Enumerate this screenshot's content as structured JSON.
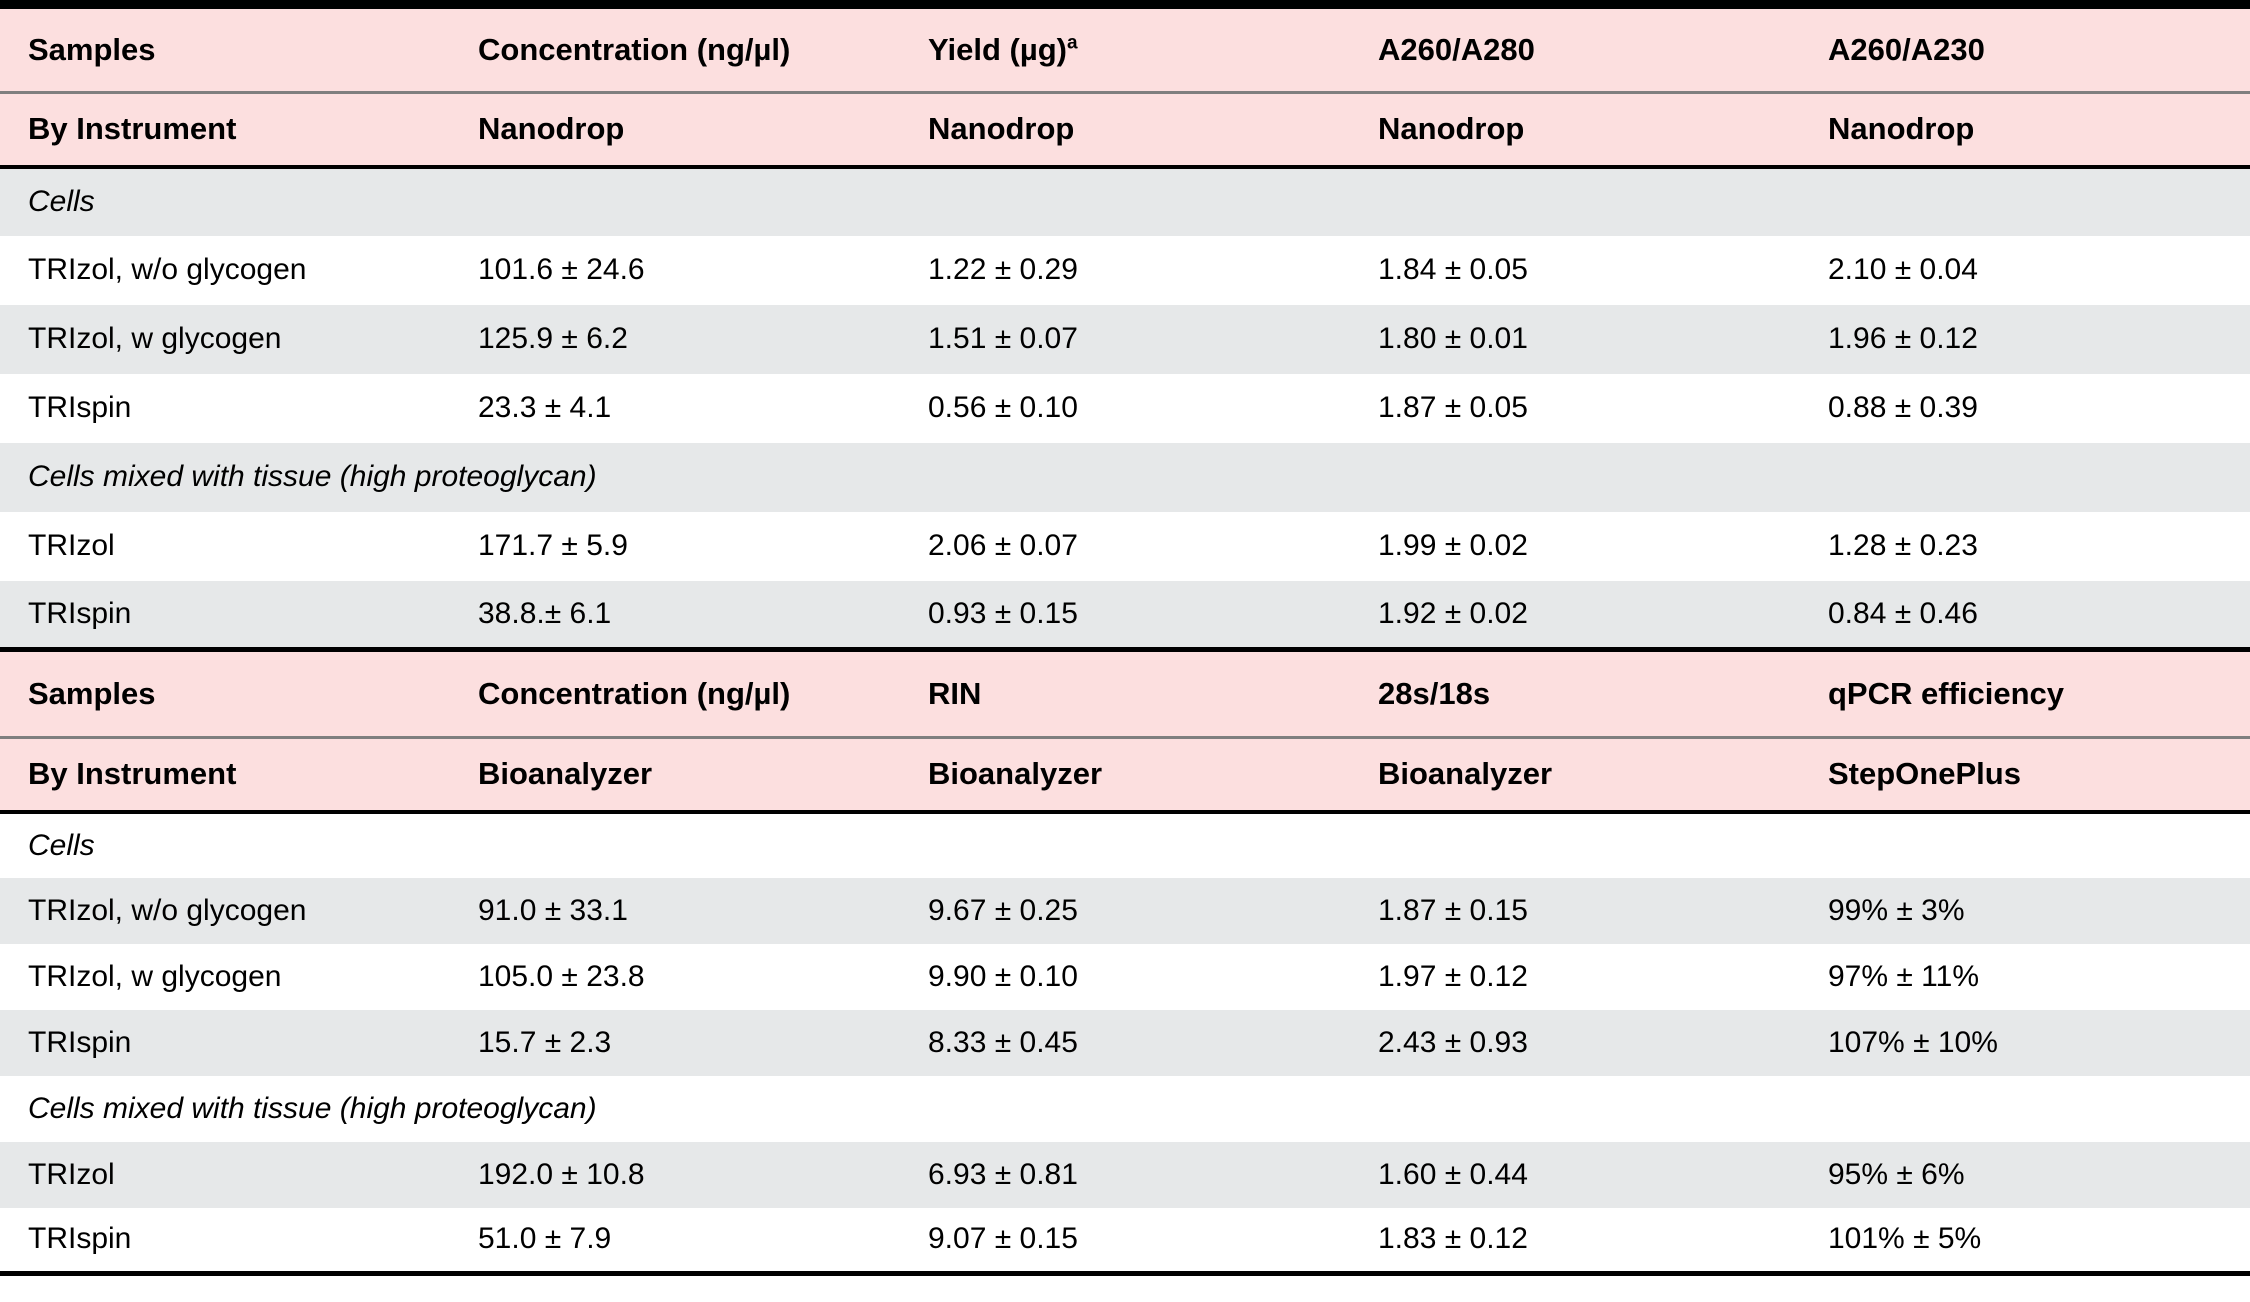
{
  "colors": {
    "header_pink": "#fcdfdf",
    "stripe_gray": "#e6e8e9",
    "rule_black": "#000000",
    "rule_gray": "#7f7f7f"
  },
  "sections": [
    {
      "header_row1": [
        "Samples",
        "Concentration (ng/µl)",
        "Yield (µg)",
        "A260/A280",
        "A260/A230"
      ],
      "header_row1_sup": "a",
      "header_row2": [
        "By Instrument",
        "Nanodrop",
        "Nanodrop",
        "Nanodrop",
        "Nanodrop"
      ],
      "rows": [
        {
          "type": "group",
          "label": "Cells"
        },
        {
          "type": "data",
          "cells": [
            "TRIzol, w/o glycogen",
            "101.6 ± 24.6",
            "1.22 ± 0.29",
            "1.84 ± 0.05",
            "2.10 ± 0.04"
          ]
        },
        {
          "type": "data",
          "cells": [
            "TRIzol, w glycogen",
            "125.9 ± 6.2",
            "1.51 ± 0.07",
            "1.80 ± 0.01",
            "1.96 ± 0.12"
          ]
        },
        {
          "type": "data",
          "cells": [
            "TRIspin",
            "23.3 ± 4.1",
            "0.56 ± 0.10",
            "1.87 ± 0.05",
            "0.88 ± 0.39"
          ]
        },
        {
          "type": "group",
          "label": "Cells mixed with tissue (high proteoglycan)"
        },
        {
          "type": "data",
          "cells": [
            "TRIzol",
            "171.7 ± 5.9",
            "2.06 ± 0.07",
            "1.99 ± 0.02",
            "1.28 ± 0.23"
          ]
        },
        {
          "type": "data",
          "cells": [
            "TRIspin",
            "38.8.± 6.1",
            "0.93 ± 0.15",
            "1.92 ± 0.02",
            "0.84 ± 0.46"
          ]
        }
      ]
    },
    {
      "header_row1": [
        "Samples",
        "Concentration (ng/µl)",
        "RIN",
        "28s/18s",
        "qPCR efficiency"
      ],
      "header_row2": [
        "By Instrument",
        "Bioanalyzer",
        "Bioanalyzer",
        "Bioanalyzer",
        "StepOnePlus"
      ],
      "rows": [
        {
          "type": "group",
          "label": "Cells"
        },
        {
          "type": "data",
          "cells": [
            "TRIzol, w/o glycogen",
            "91.0 ± 33.1",
            "9.67 ± 0.25",
            "1.87 ± 0.15",
            "99% ± 3%"
          ]
        },
        {
          "type": "data",
          "cells": [
            "TRIzol, w glycogen",
            "105.0 ± 23.8",
            "9.90 ± 0.10",
            "1.97 ± 0.12",
            "97% ± 11%"
          ]
        },
        {
          "type": "data",
          "cells": [
            "TRIspin",
            "15.7 ± 2.3",
            "8.33 ± 0.45",
            "2.43 ± 0.93",
            "107% ± 10%"
          ]
        },
        {
          "type": "group",
          "label": "Cells mixed with tissue (high proteoglycan)"
        },
        {
          "type": "data",
          "cells": [
            "TRIzol",
            "192.0 ± 10.8",
            "6.93 ± 0.81",
            "1.60 ± 0.44",
            "95% ± 6%"
          ]
        },
        {
          "type": "data",
          "cells": [
            "TRIspin",
            "51.0 ± 7.9",
            "9.07 ± 0.15",
            "1.83 ± 0.12",
            "101% ± 5%"
          ]
        }
      ]
    }
  ]
}
